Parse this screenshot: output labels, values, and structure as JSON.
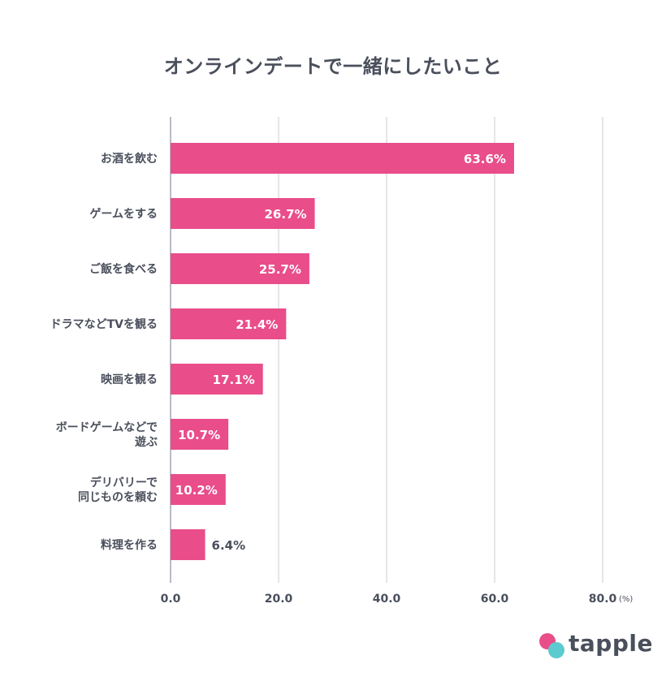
{
  "chart_data": {
    "type": "bar",
    "orientation": "horizontal",
    "title": "オンラインデートで一緒にしたいこと",
    "categories": [
      "お酒を飲む",
      "ゲームをする",
      "ご飯を食べる",
      "ドラマなどTVを観る",
      "映画を観る",
      "ボードゲームなどで\n遊ぶ",
      "デリバリーで\n同じものを頼む",
      "料理を作る"
    ],
    "values": [
      63.6,
      26.7,
      25.7,
      21.4,
      17.1,
      10.7,
      10.2,
      6.4
    ],
    "value_labels": [
      "63.6%",
      "26.7%",
      "25.7%",
      "21.4%",
      "17.1%",
      "10.7%",
      "10.2%",
      "6.4%"
    ],
    "x_ticks": [
      "0.0",
      "20.0",
      "40.0",
      "60.0",
      "80.0"
    ],
    "x_tick_values": [
      0,
      20,
      40,
      60,
      80
    ],
    "unit": "(%)",
    "xlim": [
      0,
      80
    ],
    "grid": true,
    "bar_color": "#e94d8a",
    "grid_color": "#e6e6ea",
    "axis_color": "#b8bcc6"
  },
  "brand": {
    "name": "tapple"
  }
}
